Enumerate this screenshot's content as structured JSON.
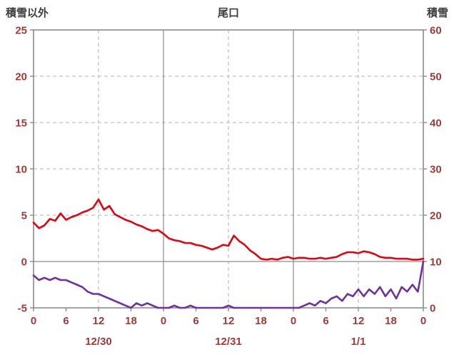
{
  "header": {
    "left_axis_title": "積雪以外",
    "chart_title": "尾口",
    "right_axis_title": "積雪"
  },
  "colors": {
    "header_text": "#3d3d3d",
    "tick_label": "#a33a3a",
    "frame": "#8c8c8c",
    "grid": "#b3b3b3",
    "zero_line": "#8c8c8c",
    "red_series": "#e8000e",
    "purple_series": "#7030a0",
    "background": "#ffffff"
  },
  "chart_data": {
    "type": "line",
    "title": "尾口",
    "x_unit": "hour",
    "x_range_hours": [
      0,
      72
    ],
    "x_tick_step_hours": 6,
    "x_tick_labels": [
      "0",
      "6",
      "12",
      "18",
      "0",
      "6",
      "12",
      "18",
      "0",
      "6",
      "12",
      "18",
      "0"
    ],
    "date_labels": [
      {
        "label": "12/30",
        "center_hour": 12
      },
      {
        "label": "12/31",
        "center_hour": 36
      },
      {
        "label": "1/1",
        "center_hour": 60
      }
    ],
    "left_axis": {
      "title": "積雪以外",
      "min": -5,
      "max": 25,
      "ticks": [
        -5,
        0,
        5,
        10,
        15,
        20,
        25
      ]
    },
    "right_axis": {
      "title": "積雪",
      "min": 0,
      "max": 60,
      "ticks": [
        0,
        10,
        20,
        30,
        40,
        50,
        60
      ]
    },
    "grid": {
      "h_dashed_at_left": [
        5,
        10,
        15,
        20
      ],
      "h_solid_at_left": [
        0
      ],
      "v_dashed_at_hours": [
        12,
        36,
        60
      ],
      "v_solid_at_hours": [
        24,
        48
      ]
    },
    "legend": "none",
    "series": [
      {
        "id": "red",
        "axis": "left",
        "color": "#e8000e",
        "values": [
          4.2,
          3.6,
          3.9,
          4.6,
          4.4,
          5.2,
          4.5,
          4.8,
          5.0,
          5.3,
          5.5,
          5.8,
          6.7,
          5.6,
          6.0,
          5.1,
          4.8,
          4.5,
          4.3,
          4.0,
          3.8,
          3.5,
          3.3,
          3.4,
          3.0,
          2.5,
          2.3,
          2.2,
          2.0,
          2.0,
          1.8,
          1.7,
          1.5,
          1.3,
          1.5,
          1.8,
          1.7,
          2.8,
          2.2,
          1.8,
          1.2,
          0.8,
          0.3,
          0.2,
          0.3,
          0.2,
          0.4,
          0.5,
          0.3,
          0.4,
          0.4,
          0.3,
          0.3,
          0.4,
          0.3,
          0.4,
          0.5,
          0.8,
          1.0,
          1.0,
          0.9,
          1.1,
          1.0,
          0.8,
          0.5,
          0.4,
          0.4,
          0.3,
          0.3,
          0.3,
          0.2,
          0.2,
          0.3
        ]
      },
      {
        "id": "purple",
        "axis": "right",
        "color": "#7030a0",
        "values": [
          7,
          6,
          6.5,
          6,
          6.5,
          6,
          6,
          5.5,
          5,
          4.5,
          3.5,
          3,
          3,
          2.5,
          2,
          1.5,
          1,
          0.5,
          0,
          1,
          0.5,
          1,
          0.5,
          0,
          0,
          0,
          0.5,
          0,
          0,
          0.5,
          0,
          0,
          0,
          0,
          0,
          0,
          0.5,
          0,
          0,
          0,
          0,
          0,
          0,
          0,
          0,
          0,
          0,
          0,
          0,
          0,
          0.5,
          1,
          0.5,
          1.5,
          1,
          2,
          2.5,
          1.5,
          3,
          2.5,
          4,
          2.5,
          4,
          3,
          4.5,
          2.5,
          4,
          2,
          4.5,
          3.5,
          5,
          3.5,
          10
        ]
      }
    ]
  }
}
